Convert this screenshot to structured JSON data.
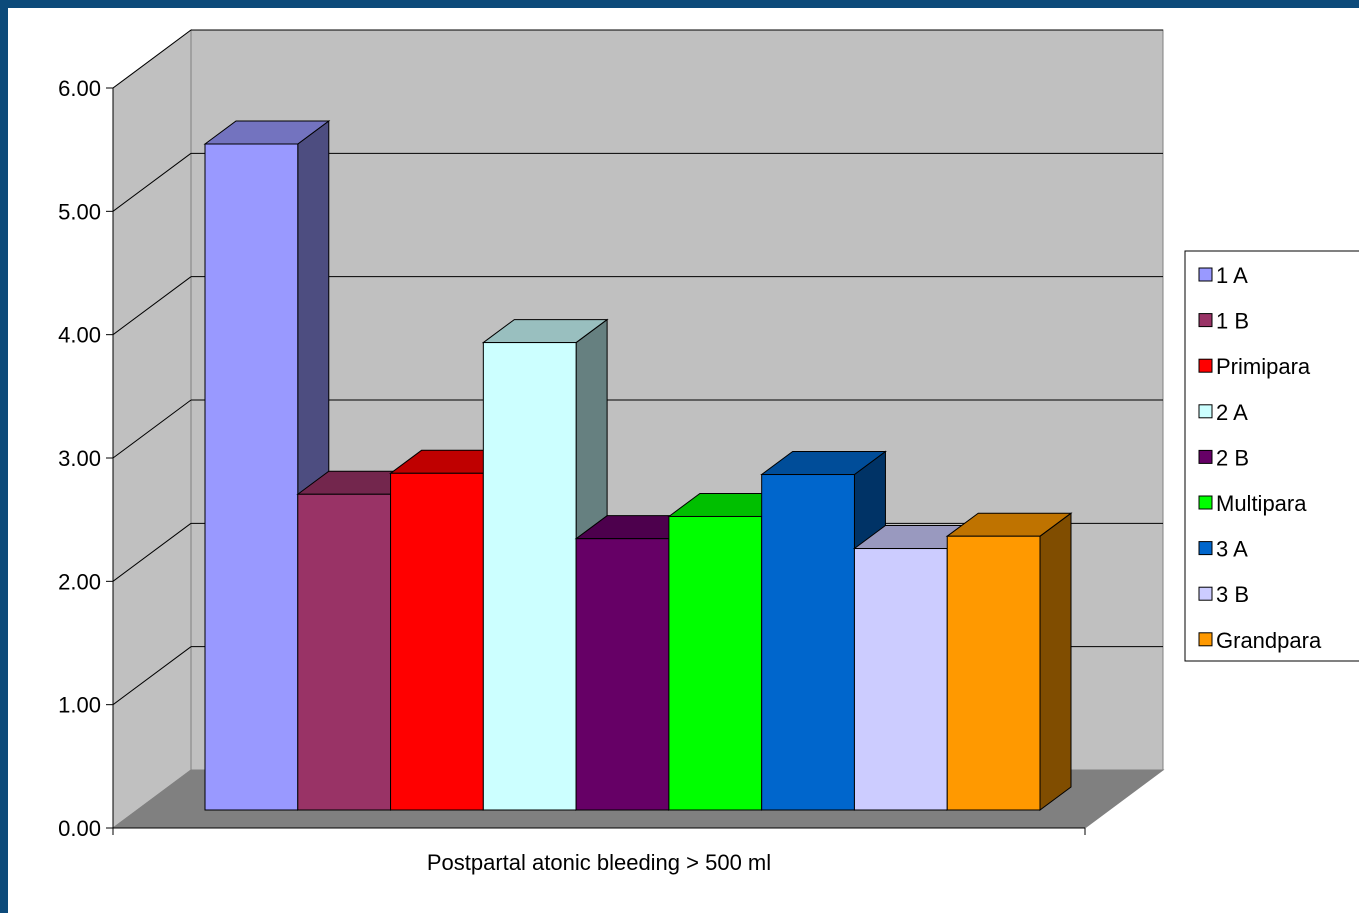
{
  "chart_data": {
    "type": "bar",
    "style": "3d-clustered",
    "categories": [
      "Postpartal atonic bleeding > 500 ml"
    ],
    "series": [
      {
        "name": "1 A",
        "values": [
          5.4
        ],
        "color": "#9999ff"
      },
      {
        "name": "1 B",
        "values": [
          2.56
        ],
        "color": "#993366"
      },
      {
        "name": "Primipara",
        "values": [
          2.73
        ],
        "color": "#ff0000"
      },
      {
        "name": "2 A",
        "values": [
          3.79
        ],
        "color": "#ccffff"
      },
      {
        "name": "2 B",
        "values": [
          2.2
        ],
        "color": "#660066"
      },
      {
        "name": "Multipara",
        "values": [
          2.38
        ],
        "color": "#00ff00"
      },
      {
        "name": "3 A",
        "values": [
          2.72
        ],
        "color": "#0066cc"
      },
      {
        "name": "3 B",
        "values": [
          2.12
        ],
        "color": "#ccccff"
      },
      {
        "name": "Grandpara",
        "values": [
          2.22
        ],
        "color": "#ff9900"
      }
    ],
    "ylim": [
      0,
      6
    ],
    "y_ticks": [
      "0.00",
      "1.00",
      "2.00",
      "3.00",
      "4.00",
      "5.00",
      "6.00"
    ],
    "grid": true,
    "legend_position": "right",
    "wall_color": "#c0c0c0",
    "floor_color": "#808080",
    "outer_frame_color": "#0c4a7a"
  }
}
